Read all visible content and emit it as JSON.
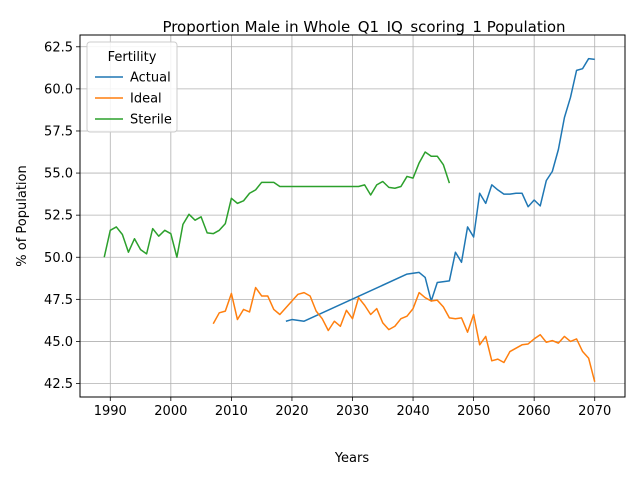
{
  "chart_data": {
    "type": "line",
    "title": "Proportion Male in Whole_Q1_IQ_scoring_1 Population",
    "xlabel": "Years",
    "ylabel": "% of Population",
    "xlim": [
      1985,
      2075
    ],
    "ylim": [
      41.7,
      63.2
    ],
    "xticks": [
      1990,
      2000,
      2010,
      2020,
      2030,
      2040,
      2050,
      2060,
      2070
    ],
    "yticks": [
      42.5,
      45.0,
      47.5,
      50.0,
      52.5,
      55.0,
      57.5,
      60.0,
      62.5
    ],
    "xtick_labels": [
      "1990",
      "2000",
      "2010",
      "2020",
      "2030",
      "2040",
      "2050",
      "2060",
      "2070"
    ],
    "ytick_labels": [
      "42.5",
      "45.0",
      "47.5",
      "50.0",
      "52.5",
      "55.0",
      "57.5",
      "60.0",
      "62.5"
    ],
    "grid": true,
    "legend": {
      "title": "Fertility",
      "placement": "top-left"
    },
    "series": [
      {
        "name": "Actual",
        "color": "#1f77b4",
        "x": [
          2019,
          2020,
          2022,
          2039,
          2041,
          2042,
          2043,
          2044,
          2046,
          2047,
          2048,
          2049,
          2050,
          2051,
          2052,
          2053,
          2054,
          2055,
          2056,
          2057,
          2058,
          2059,
          2060,
          2061,
          2062,
          2063,
          2064,
          2065,
          2066,
          2067,
          2068,
          2069,
          2070
        ],
        "y": [
          46.2,
          46.3,
          46.2,
          49.0,
          49.1,
          48.8,
          47.4,
          48.5,
          48.6,
          50.3,
          49.7,
          51.8,
          51.2,
          53.8,
          53.2,
          54.3,
          54.0,
          53.75,
          53.75,
          53.8,
          53.8,
          53.0,
          53.4,
          53.05,
          54.55,
          55.1,
          56.4,
          58.3,
          59.5,
          61.1,
          61.2,
          61.8,
          61.75
        ]
      },
      {
        "name": "Ideal",
        "color": "#ff7f0e",
        "x": [
          2007,
          2008,
          2009,
          2010,
          2011,
          2012,
          2013,
          2014,
          2015,
          2016,
          2017,
          2018,
          2019,
          2020,
          2021,
          2022,
          2023,
          2024,
          2025,
          2026,
          2027,
          2028,
          2029,
          2030,
          2031,
          2032,
          2033,
          2034,
          2035,
          2036,
          2037,
          2038,
          2039,
          2040,
          2041,
          2042,
          2043,
          2044,
          2045,
          2046,
          2047,
          2048,
          2049,
          2050,
          2051,
          2052,
          2053,
          2054,
          2055,
          2056,
          2057,
          2058,
          2059,
          2060,
          2061,
          2062,
          2063,
          2064,
          2065,
          2066,
          2067,
          2068,
          2069,
          2070
        ],
        "y": [
          46.05,
          46.7,
          46.8,
          47.85,
          46.3,
          46.9,
          46.75,
          48.2,
          47.7,
          47.7,
          46.9,
          46.6,
          47.0,
          47.4,
          47.8,
          47.9,
          47.7,
          46.8,
          46.35,
          45.65,
          46.2,
          45.9,
          46.85,
          46.35,
          47.6,
          47.15,
          46.6,
          46.95,
          46.1,
          45.7,
          45.9,
          46.35,
          46.5,
          46.95,
          47.9,
          47.6,
          47.4,
          47.45,
          47.05,
          46.4,
          46.35,
          46.4,
          45.55,
          46.6,
          44.8,
          45.3,
          43.85,
          43.95,
          43.75,
          44.4,
          44.6,
          44.8,
          44.85,
          45.15,
          45.4,
          44.95,
          45.05,
          44.9,
          45.3,
          45.0,
          45.15,
          44.4,
          44.0,
          42.6
        ]
      },
      {
        "name": "Sterile",
        "color": "#2ca02c",
        "x": [
          1989,
          1990,
          1991,
          1992,
          1993,
          1994,
          1995,
          1996,
          1997,
          1998,
          1999,
          2000,
          2001,
          2002,
          2003,
          2004,
          2005,
          2006,
          2007,
          2008,
          2009,
          2010,
          2011,
          2012,
          2013,
          2014,
          2015,
          2016,
          2017,
          2018,
          2019,
          2020,
          2021,
          2022,
          2023,
          2024,
          2025,
          2026,
          2027,
          2028,
          2029,
          2030,
          2031,
          2032,
          2033,
          2034,
          2035,
          2036,
          2037,
          2038,
          2039,
          2040,
          2041,
          2042,
          2043,
          2044,
          2045,
          2046
        ],
        "y": [
          50.0,
          51.6,
          51.8,
          51.35,
          50.3,
          51.1,
          50.45,
          50.2,
          51.7,
          51.25,
          51.6,
          51.4,
          50.0,
          51.95,
          52.55,
          52.2,
          52.4,
          51.45,
          51.4,
          51.6,
          52.0,
          53.5,
          53.2,
          53.35,
          53.8,
          54.0,
          54.45,
          54.45,
          54.45,
          54.2,
          54.2,
          54.2,
          54.2,
          54.2,
          54.2,
          54.2,
          54.2,
          54.2,
          54.2,
          54.2,
          54.2,
          54.2,
          54.2,
          54.3,
          53.7,
          54.3,
          54.5,
          54.15,
          54.1,
          54.2,
          54.8,
          54.7,
          55.6,
          56.25,
          56.0,
          56.0,
          55.5,
          54.4
        ]
      }
    ]
  }
}
